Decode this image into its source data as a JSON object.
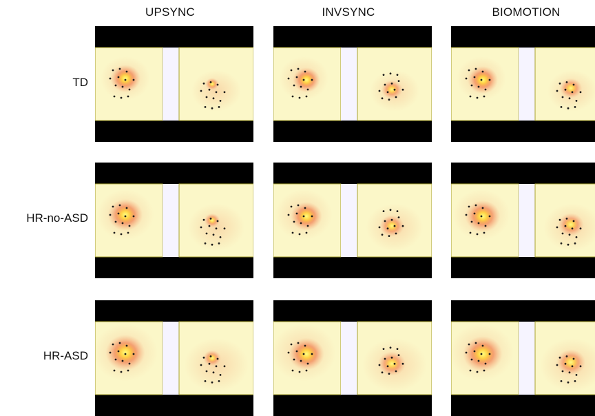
{
  "columns": [
    "UPSYNC",
    "INVSYNC",
    "BIOMOTION"
  ],
  "rows": [
    "TD",
    "HR-no-ASD",
    "HR-ASD"
  ],
  "colors": {
    "background": "#ffffff",
    "frame": "#000000",
    "stimulus": "#fbf7c8",
    "stimulus_border": "#a7a230",
    "gap": "#f6f4ff",
    "heat_low": "#f4a070",
    "heat_mid": "#f06a3c",
    "heat_high": "#ffff80",
    "dots": "#1a1a1a"
  }
}
